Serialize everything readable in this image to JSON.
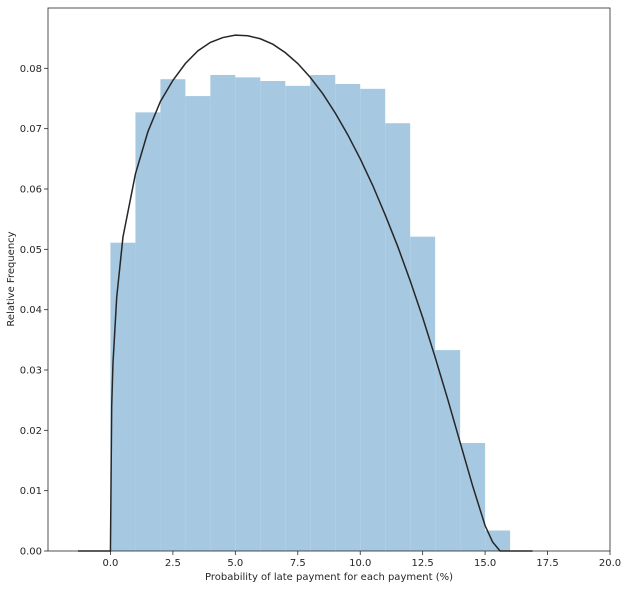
{
  "chart_data": {
    "type": "bar",
    "title": "",
    "xlabel": "Probability of late payment for each payment (%)",
    "ylabel": "Relative Frequency",
    "xlim": [
      -2.5,
      20.0
    ],
    "ylim": [
      0.0,
      0.09
    ],
    "x_ticks": [
      "0.0",
      "2.5",
      "5.0",
      "7.5",
      "10.0",
      "12.5",
      "15.0",
      "17.5",
      "20.0"
    ],
    "y_ticks": [
      "0.00",
      "0.01",
      "0.02",
      "0.03",
      "0.04",
      "0.05",
      "0.06",
      "0.07",
      "0.08"
    ],
    "grid": false,
    "histogram": {
      "bin_edges": [
        0.0,
        1.0,
        2.0,
        3.0,
        4.0,
        5.0,
        6.0,
        7.0,
        8.0,
        9.0,
        10.0,
        11.0,
        12.0,
        13.0,
        14.0,
        15.0,
        16.0
      ],
      "values": [
        0.0511,
        0.0727,
        0.0782,
        0.0754,
        0.0789,
        0.0785,
        0.0779,
        0.0771,
        0.0789,
        0.0774,
        0.0766,
        0.0709,
        0.0521,
        0.0333,
        0.0179,
        0.0034
      ],
      "color": "#a6c8e0"
    },
    "fit_curve": {
      "x": [
        -1.3,
        -0.05,
        0.0,
        0.05,
        0.1,
        0.25,
        0.5,
        1.0,
        1.5,
        2.0,
        2.5,
        3.0,
        3.5,
        4.0,
        4.5,
        5.0,
        5.5,
        6.0,
        6.5,
        7.0,
        7.5,
        8.0,
        8.5,
        9.0,
        9.5,
        10.0,
        10.5,
        11.0,
        11.5,
        12.0,
        12.5,
        13.0,
        13.5,
        14.0,
        14.5,
        15.0,
        15.3,
        15.5,
        15.6,
        15.65,
        15.7,
        16.9
      ],
      "y": [
        0.0,
        0.0,
        0.0,
        0.024,
        0.031,
        0.042,
        0.052,
        0.0625,
        0.0695,
        0.0745,
        0.078,
        0.0808,
        0.0829,
        0.0843,
        0.0851,
        0.0855,
        0.0854,
        0.0849,
        0.084,
        0.0826,
        0.0808,
        0.0785,
        0.0758,
        0.0726,
        0.069,
        0.065,
        0.0606,
        0.0557,
        0.0505,
        0.0448,
        0.0387,
        0.0321,
        0.0252,
        0.018,
        0.0108,
        0.0042,
        0.0015,
        0.0005,
        0.0,
        0.0,
        0.0,
        0.0
      ],
      "color": "#262626"
    },
    "axes_color": "#262626"
  }
}
